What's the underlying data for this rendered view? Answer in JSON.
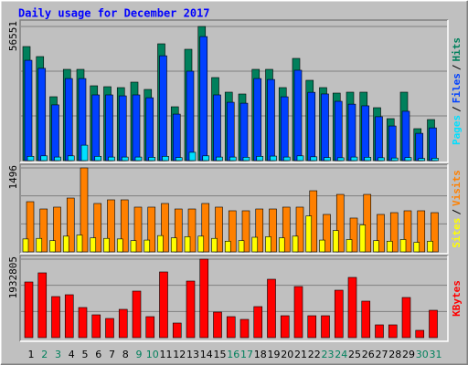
{
  "chart_data": [
    {
      "type": "bar",
      "title": "Daily usage for December 2017",
      "legend_separator": "/",
      "ylim": [
        0,
        56551
      ],
      "yticks": [
        56551
      ],
      "grid_divisions": 3,
      "series": [
        {
          "name": "Hits",
          "color": "#00805c",
          "values": [
            48088,
            43856,
            26929,
            38470,
            38470,
            31545,
            31161,
            30776,
            33084,
            30007,
            49242,
            22697,
            46933,
            56551,
            35008,
            28853,
            28083,
            38470,
            38470,
            30776,
            43086,
            33854,
            30776,
            28468,
            28853,
            28853,
            22313,
            17696,
            28853,
            13465,
            17312
          ]
        },
        {
          "name": "Files",
          "color": "#0040ff",
          "values": [
            42300,
            38900,
            23500,
            34600,
            34600,
            27700,
            27700,
            27300,
            27700,
            26500,
            44200,
            19600,
            37700,
            52300,
            27700,
            24600,
            24200,
            34600,
            34200,
            26900,
            38100,
            28800,
            28100,
            25000,
            23800,
            23100,
            18500,
            14600,
            20800,
            11500,
            13800
          ]
        },
        {
          "name": "Pages",
          "color": "#00e0ff",
          "values": [
            1800,
            2000,
            1500,
            2000,
            6500,
            1800,
            1500,
            1500,
            1500,
            1400,
            1800,
            1300,
            3500,
            2000,
            1500,
            1500,
            1400,
            1800,
            1900,
            1500,
            2000,
            1600,
            1300,
            1200,
            1500,
            1400,
            1200,
            1100,
            1300,
            900,
            1000
          ]
        }
      ]
    },
    {
      "type": "bar",
      "ylim": [
        0,
        1496
      ],
      "yticks": [
        1496
      ],
      "grid_divisions": 3,
      "series": [
        {
          "name": "Visits",
          "color": "#ff8000",
          "values": [
            894,
            764,
            797,
            959,
            1496,
            862,
            927,
            927,
            797,
            797,
            862,
            764,
            764,
            862,
            797,
            732,
            732,
            764,
            764,
            797,
            797,
            1089,
            667,
            1024,
            602,
            1024,
            667,
            699,
            732,
            732,
            699
          ]
        },
        {
          "name": "Sites",
          "color": "#ffff00",
          "values": [
            230,
            240,
            200,
            280,
            300,
            250,
            240,
            230,
            200,
            210,
            290,
            250,
            270,
            280,
            240,
            190,
            200,
            260,
            270,
            250,
            280,
            640,
            210,
            380,
            220,
            480,
            200,
            190,
            220,
            170,
            190
          ]
        }
      ]
    },
    {
      "type": "bar",
      "ylim": [
        0,
        1932805
      ],
      "yticks": [
        1932805
      ],
      "grid_divisions": 3,
      "series": [
        {
          "name": "KBytes",
          "color": "#ff0000",
          "values": [
            1370900,
            1595700,
            1011300,
            1056300,
            741600,
            561900,
            471900,
            696700,
            1146200,
            516900,
            1618100,
            359600,
            1393400,
            1932805,
            629300,
            516900,
            449500,
            764100,
            1438300,
            539400,
            1258500,
            539400,
            539400,
            1168600,
            1483300,
            899000,
            314600,
            314600,
            988900,
            179800,
            674200
          ]
        }
      ],
      "categories": [
        "1",
        "2",
        "3",
        "4",
        "5",
        "6",
        "7",
        "8",
        "9",
        "10",
        "11",
        "12",
        "13",
        "14",
        "15",
        "16",
        "17",
        "18",
        "19",
        "20",
        "21",
        "22",
        "23",
        "24",
        "25",
        "26",
        "27",
        "28",
        "29",
        "30",
        "31"
      ],
      "category_colors": [
        "#000000",
        "#00805c",
        "#00805c",
        "#000000",
        "#000000",
        "#000000",
        "#000000",
        "#000000",
        "#00805c",
        "#00805c",
        "#000000",
        "#000000",
        "#000000",
        "#000000",
        "#000000",
        "#00805c",
        "#00805c",
        "#000000",
        "#000000",
        "#000000",
        "#000000",
        "#000000",
        "#00805c",
        "#00805c",
        "#000000",
        "#000000",
        "#000000",
        "#000000",
        "#000000",
        "#00805c",
        "#00805c"
      ]
    }
  ]
}
